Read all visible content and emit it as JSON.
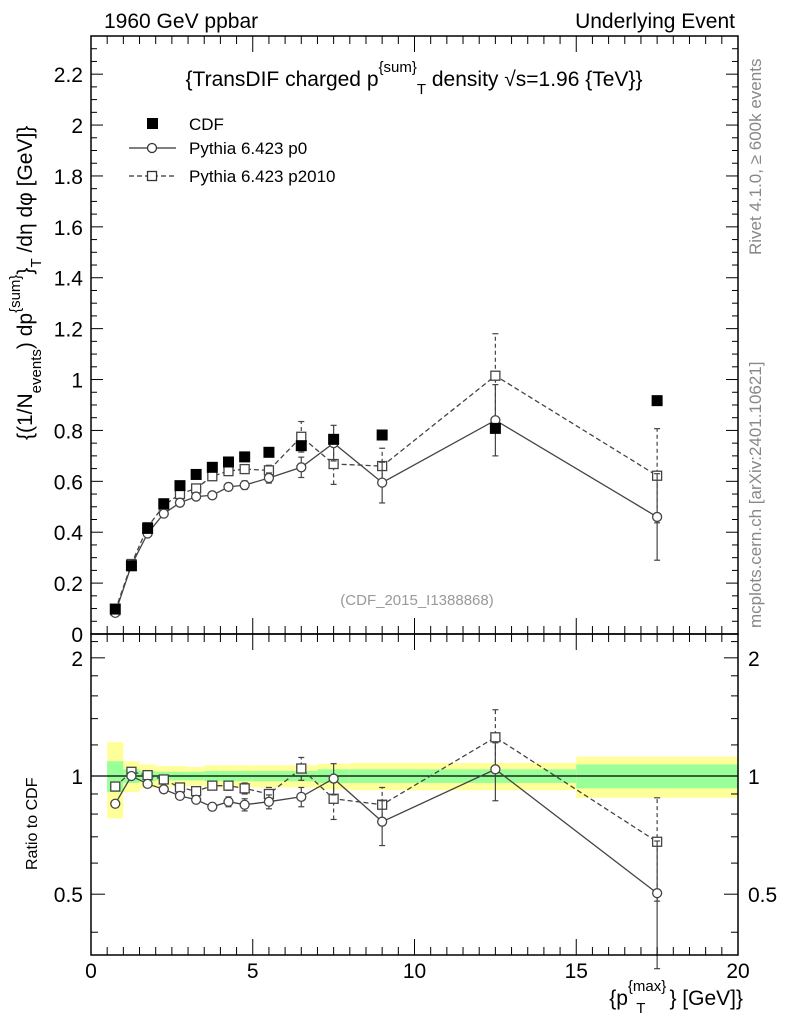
{
  "header": {
    "left": "1960 GeV ppbar",
    "right": "Underlying Event"
  },
  "side_labels": {
    "rivet": "Rivet 4.1.0, ≥ 600k events",
    "mcplots": "mcplots.cern.ch [arXiv:2401.10621]"
  },
  "chart_data": [
    {
      "panel": "main",
      "type": "scatter",
      "title": "{TransDIF charged p^{sum}_T density √s=1.96 {TeV}}",
      "title_parts": {
        "a": "{TransDIF charged p",
        "sup": "{sum}",
        "sub": "T",
        "b": " density √s=1.96 {TeV}}"
      },
      "ylabel": "{(1/N_events) dp^{sum}_T /dη dφ [GeV]}",
      "ylabel_parts": {
        "a": "{(1/N",
        "sub1": "events",
        "b": ") dp",
        "sup": "{sum}",
        "c": "}",
        "sub2": "T",
        "d": " /dη  dφ [GeV]}"
      },
      "analysis_id": "(CDF_2015_I1388868)",
      "xlim": [
        0,
        20
      ],
      "ylim": [
        0,
        2.35
      ],
      "yticks": [
        "0",
        "0.2",
        "0.4",
        "0.6",
        "0.8",
        "1",
        "1.2",
        "1.4",
        "1.6",
        "1.8",
        "2",
        "2.2"
      ],
      "ytick_values": [
        0,
        0.2,
        0.4,
        0.6,
        0.8,
        1.0,
        1.2,
        1.4,
        1.6,
        1.8,
        2.0,
        2.2
      ],
      "legend": {
        "position": "top-left",
        "entries": [
          "CDF",
          "Pythia 6.423 p0",
          "Pythia 6.423 p2010"
        ]
      },
      "series": [
        {
          "name": "CDF",
          "style": "filled-square",
          "x": [
            0.75,
            1.25,
            1.75,
            2.25,
            2.75,
            3.25,
            3.75,
            4.25,
            4.75,
            5.5,
            6.5,
            7.5,
            9.0,
            12.5,
            17.5
          ],
          "y": [
            0.098,
            0.268,
            0.415,
            0.512,
            0.583,
            0.627,
            0.655,
            0.676,
            0.696,
            0.714,
            0.74,
            0.765,
            0.782,
            0.808,
            0.917
          ],
          "yerr": [
            0,
            0,
            0,
            0,
            0,
            0,
            0,
            0,
            0,
            0,
            0,
            0,
            0,
            0,
            0
          ]
        },
        {
          "name": "Pythia 6.423 p0",
          "style": "open-circle-solid",
          "x": [
            0.75,
            1.25,
            1.75,
            2.25,
            2.75,
            3.25,
            3.75,
            4.25,
            4.75,
            5.5,
            6.5,
            7.5,
            9.0,
            12.5,
            17.5
          ],
          "y": [
            0.083,
            0.27,
            0.395,
            0.473,
            0.516,
            0.54,
            0.545,
            0.578,
            0.585,
            0.613,
            0.655,
            0.75,
            0.595,
            0.84,
            0.46
          ],
          "yerr": [
            0.003,
            0.005,
            0.007,
            0.008,
            0.01,
            0.012,
            0.012,
            0.015,
            0.017,
            0.02,
            0.04,
            0.07,
            0.08,
            0.14,
            0.17
          ]
        },
        {
          "name": "Pythia 6.423 p2010",
          "style": "open-square-dashed",
          "x": [
            0.75,
            1.25,
            1.75,
            2.25,
            2.75,
            3.25,
            3.75,
            4.25,
            4.75,
            5.5,
            6.5,
            7.5,
            9.0,
            12.5,
            17.5
          ],
          "y": [
            0.093,
            0.275,
            0.42,
            0.505,
            0.55,
            0.572,
            0.62,
            0.64,
            0.648,
            0.643,
            0.775,
            0.668,
            0.66,
            1.015,
            0.622
          ],
          "yerr": [
            0.003,
            0.005,
            0.007,
            0.008,
            0.01,
            0.012,
            0.012,
            0.015,
            0.017,
            0.02,
            0.06,
            0.08,
            0.07,
            0.165,
            0.185
          ]
        }
      ]
    },
    {
      "panel": "ratio",
      "type": "scatter",
      "ylabel": "Ratio to CDF",
      "xlabel": "{p_T^{max}} [GeV]}",
      "xlabel_parts": {
        "a": "{p",
        "sup": "{max}",
        "sub": "T",
        "b": "} [GeV]}"
      },
      "xlim": [
        0,
        20
      ],
      "ylim": [
        0.35,
        2.3
      ],
      "xticks": [
        "0",
        "5",
        "10",
        "15",
        "20"
      ],
      "xtick_values": [
        0,
        5,
        10,
        15,
        20
      ],
      "yticks": [
        "0.5",
        "1",
        "2"
      ],
      "ytick_values": [
        0.5,
        1,
        2
      ],
      "reference_line": 1,
      "bands": {
        "edges": [
          0.5,
          1.0,
          1.5,
          2.0,
          2.5,
          3.0,
          3.5,
          4.0,
          4.5,
          5.0,
          6.0,
          7.0,
          8.0,
          10.0,
          15.0,
          20.0
        ],
        "green_lo": [
          0.91,
          0.96,
          0.97,
          0.975,
          0.975,
          0.975,
          0.97,
          0.97,
          0.97,
          0.97,
          0.97,
          0.96,
          0.96,
          0.96,
          0.93
        ],
        "green_hi": [
          1.09,
          1.04,
          1.03,
          1.025,
          1.025,
          1.025,
          1.03,
          1.03,
          1.03,
          1.03,
          1.03,
          1.04,
          1.04,
          1.04,
          1.07
        ],
        "yellow_lo": [
          0.78,
          0.91,
          0.93,
          0.94,
          0.94,
          0.945,
          0.935,
          0.935,
          0.935,
          0.935,
          0.935,
          0.925,
          0.92,
          0.92,
          0.88
        ],
        "yellow_hi": [
          1.22,
          1.09,
          1.07,
          1.06,
          1.06,
          1.055,
          1.065,
          1.065,
          1.065,
          1.065,
          1.065,
          1.075,
          1.08,
          1.08,
          1.12
        ]
      },
      "series": [
        {
          "name": "Pythia 6.423 p0",
          "style": "open-circle-solid",
          "x": [
            0.75,
            1.25,
            1.75,
            2.25,
            2.75,
            3.25,
            3.75,
            4.25,
            4.75,
            5.5,
            6.5,
            7.5,
            9.0,
            12.5,
            17.5
          ],
          "y": [
            0.85,
            1.0,
            0.955,
            0.925,
            0.89,
            0.87,
            0.835,
            0.86,
            0.845,
            0.86,
            0.885,
            0.985,
            0.765,
            1.04,
            0.503
          ],
          "yerr": [
            0.005,
            0.01,
            0.01,
            0.015,
            0.015,
            0.018,
            0.018,
            0.025,
            0.03,
            0.035,
            0.05,
            0.09,
            0.1,
            0.175,
            0.18
          ]
        },
        {
          "name": "Pythia 6.423 p2010",
          "style": "open-square-dashed",
          "x": [
            0.75,
            1.25,
            1.75,
            2.25,
            2.75,
            3.25,
            3.75,
            4.25,
            4.75,
            5.5,
            6.5,
            7.5,
            9.0,
            12.5,
            17.5
          ],
          "y": [
            0.94,
            1.025,
            1.005,
            0.98,
            0.935,
            0.915,
            0.945,
            0.945,
            0.93,
            0.9,
            1.045,
            0.875,
            0.845,
            1.255,
            0.68
          ],
          "yerr": [
            0.005,
            0.01,
            0.01,
            0.015,
            0.015,
            0.018,
            0.018,
            0.025,
            0.03,
            0.035,
            0.07,
            0.1,
            0.09,
            0.22,
            0.2
          ]
        }
      ]
    }
  ]
}
